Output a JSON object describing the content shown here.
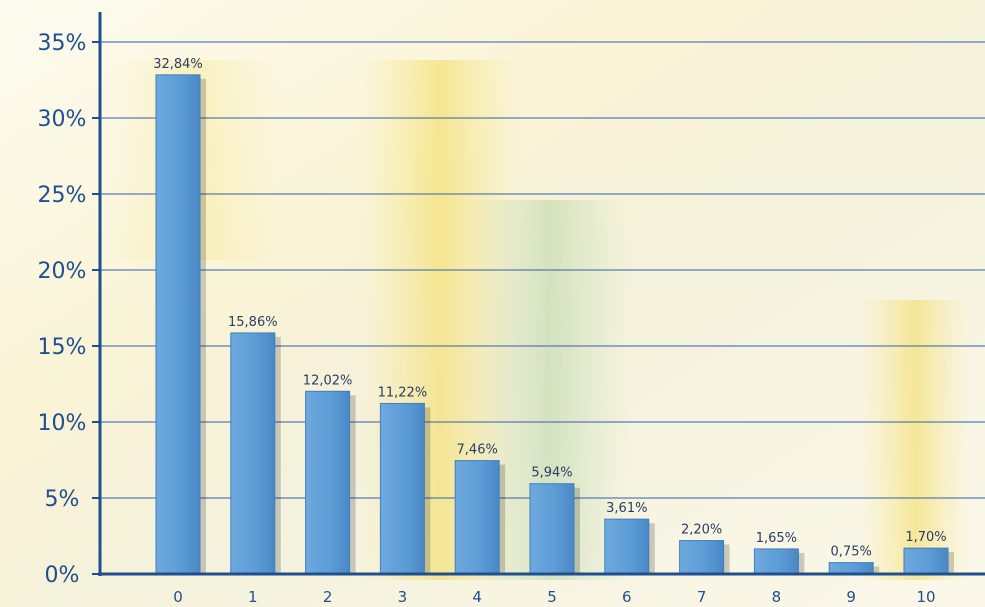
{
  "chart_data": {
    "type": "bar",
    "title": "",
    "xlabel": "",
    "ylabel": "",
    "categories": [
      "0",
      "1",
      "2",
      "3",
      "4",
      "5",
      "6",
      "7",
      "8",
      "9",
      "10"
    ],
    "values": [
      32.84,
      15.86,
      12.02,
      11.22,
      7.46,
      5.94,
      3.61,
      2.2,
      1.65,
      0.75,
      1.7
    ],
    "value_labels": [
      "32,84%",
      "15,86%",
      "12,02%",
      "11,22%",
      "7,46%",
      "5,94%",
      "3,61%",
      "2,20%",
      "1,65%",
      "0,75%",
      "1,70%"
    ],
    "ylim": [
      0,
      35
    ],
    "yticks": [
      0,
      5,
      10,
      15,
      20,
      25,
      30,
      35
    ],
    "ytick_labels": [
      "0%",
      "5%",
      "10%",
      "15%",
      "20%",
      "25%",
      "30%",
      "35%"
    ],
    "grid": true,
    "legend": "none",
    "colors": {
      "bar": "#5b9bd5",
      "bar_dark": "#3f7fbf",
      "gridline": "#3d6aa8",
      "axis": "#1f4f8f",
      "tick_text": "#1f4f8f"
    }
  }
}
